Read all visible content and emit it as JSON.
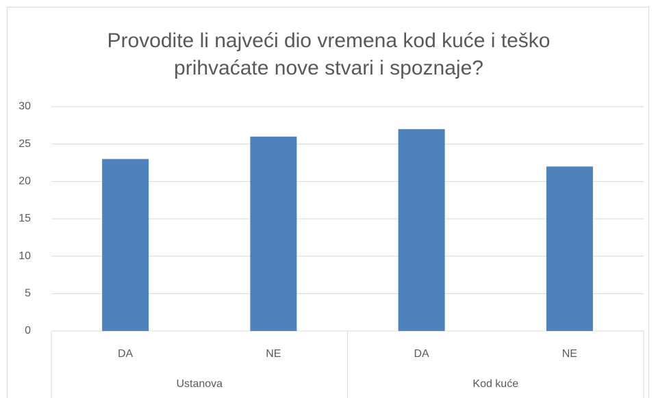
{
  "chart_data": {
    "type": "bar",
    "title": "Provodite li najveći dio vremena kod kuće i teško prihvaćate nove stvari i spoznaje?",
    "categories": [
      "DA",
      "NE",
      "DA",
      "NE"
    ],
    "groups": [
      "Ustanova",
      "Kod kuće"
    ],
    "values": [
      23,
      26,
      27,
      22
    ],
    "color": "#4f81bd",
    "ylim": [
      0,
      30
    ],
    "yticks": [
      0,
      5,
      10,
      15,
      20,
      25,
      30
    ],
    "grid": true
  }
}
